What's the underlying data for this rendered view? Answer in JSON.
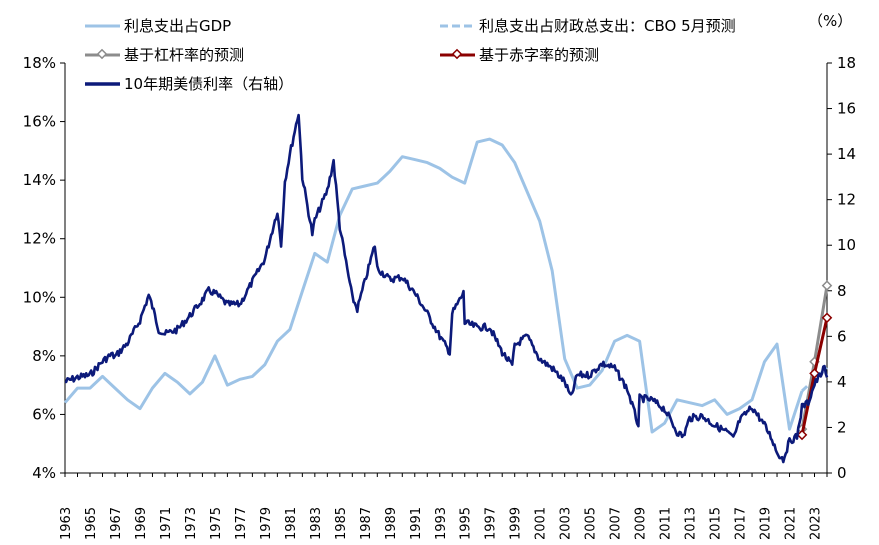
{
  "chart_data": {
    "type": "line",
    "unit_label": "（%）",
    "legend": [
      {
        "name": "利息支出占GDP",
        "color": "#9dc3e6",
        "style": "solid"
      },
      {
        "name": "利息支出占财政总支出：CBO 5月预测",
        "color": "#9dc3e6",
        "style": "dashed"
      },
      {
        "name": "基于杠杆率的预测",
        "color": "#8c8c8c",
        "style": "marker"
      },
      {
        "name": "基于赤字率的预测",
        "color": "#8b0000",
        "style": "marker"
      },
      {
        "name": "10年期美债利率（右轴）",
        "color": "#0c1a7a",
        "style": "solid-thick"
      }
    ],
    "left_axis": {
      "min": 4,
      "max": 18,
      "ticks": [
        "4%",
        "6%",
        "8%",
        "10%",
        "12%",
        "14%",
        "16%",
        "18%"
      ]
    },
    "right_axis": {
      "min": 0,
      "max": 18,
      "ticks": [
        "0",
        "2",
        "4",
        "6",
        "8",
        "10",
        "12",
        "14",
        "16",
        "18"
      ]
    },
    "x_axis": {
      "min": 1963,
      "max": 2024,
      "ticks": [
        "1963",
        "1965",
        "1967",
        "1969",
        "1971",
        "1973",
        "1975",
        "1977",
        "1979",
        "1981",
        "1983",
        "1985",
        "1987",
        "1989",
        "1991",
        "1993",
        "1995",
        "1997",
        "1999",
        "2001",
        "2003",
        "2005",
        "2007",
        "2009",
        "2011",
        "2013",
        "2015",
        "2017",
        "2019",
        "2021",
        "2023"
      ]
    },
    "series": [
      {
        "name": "利息支出占GDP",
        "axis": "left",
        "x": [
          1963,
          1964,
          1965,
          1966,
          1967,
          1968,
          1969,
          1970,
          1971,
          1972,
          1973,
          1974,
          1975,
          1976,
          1977,
          1978,
          1979,
          1980,
          1981,
          1982,
          1983,
          1984,
          1985,
          1986,
          1987,
          1988,
          1989,
          1990,
          1991,
          1992,
          1993,
          1994,
          1995,
          1996,
          1997,
          1998,
          1999,
          2000,
          2001,
          2002,
          2003,
          2004,
          2005,
          2006,
          2007,
          2008,
          2009,
          2010,
          2011,
          2012,
          2013,
          2014,
          2015,
          2016,
          2017,
          2018,
          2019,
          2020,
          2021,
          2022
        ],
        "values": [
          6.4,
          6.9,
          6.9,
          7.3,
          6.9,
          6.5,
          6.2,
          6.9,
          7.4,
          7.1,
          6.7,
          7.1,
          8.0,
          7.0,
          7.2,
          7.3,
          7.7,
          8.5,
          8.9,
          10.2,
          11.5,
          11.2,
          12.8,
          13.7,
          13.8,
          13.9,
          14.3,
          14.8,
          14.7,
          14.6,
          14.4,
          14.1,
          13.9,
          15.3,
          15.4,
          15.2,
          14.6,
          13.6,
          12.6,
          10.9,
          7.9,
          6.9,
          7.0,
          7.5,
          8.5,
          8.7,
          8.5,
          5.4,
          5.7,
          6.5,
          6.4,
          6.3,
          6.5,
          6.0,
          6.2,
          6.5,
          7.8,
          8.4,
          5.5,
          6.8
        ]
      },
      {
        "name": "利息支出占财政总支出：CBO 5月预测",
        "axis": "left",
        "x": [
          2022,
          2023,
          2024
        ],
        "values": [
          6.8,
          7.2,
          7.6
        ]
      },
      {
        "name": "基于杠杆率的预测",
        "axis": "left",
        "x": [
          2022,
          2023,
          2024
        ],
        "values": [
          5.5,
          7.8,
          10.4
        ]
      },
      {
        "name": "基于赤字率的预测",
        "axis": "left",
        "x": [
          2022,
          2023,
          2024
        ],
        "values": [
          5.3,
          7.4,
          9.3
        ]
      },
      {
        "name": "10年期美债利率（右轴）",
        "axis": "right",
        "x": [
          1963,
          1964,
          1965,
          1966,
          1966.7,
          1967,
          1968,
          1969,
          1969.7,
          1970,
          1970.5,
          1971,
          1972,
          1973,
          1974,
          1974.5,
          1975,
          1976,
          1977,
          1978,
          1979,
          1980,
          1980.3,
          1980.6,
          1981,
          1981.7,
          1982,
          1982.8,
          1983,
          1984,
          1984.5,
          1985,
          1986,
          1986.4,
          1987,
          1987.8,
          1988,
          1989,
          1990,
          1991,
          1992,
          1993,
          1993.8,
          1994,
          1994.9,
          1995,
          1996,
          1997,
          1998,
          1998.8,
          1999,
          2000,
          2001,
          2002,
          2003,
          2003.5,
          2004,
          2005,
          2006,
          2007,
          2008,
          2008.9,
          2009,
          2010,
          2011,
          2012,
          2012.5,
          2013,
          2014,
          2015,
          2016,
          2016.5,
          2017,
          2018,
          2019,
          2019.6,
          2020,
          2020.5,
          2021,
          2021.6,
          2022,
          2022.5,
          2023,
          2023.8,
          2024
        ],
        "values": [
          4.0,
          4.2,
          4.3,
          4.9,
          5.2,
          5.1,
          5.7,
          6.7,
          7.8,
          7.3,
          6.3,
          6.1,
          6.3,
          6.9,
          7.6,
          8.0,
          7.9,
          7.4,
          7.4,
          8.4,
          9.4,
          11.5,
          10.0,
          12.8,
          14.0,
          15.8,
          13.0,
          10.5,
          11.1,
          12.4,
          13.7,
          10.8,
          7.7,
          7.2,
          8.4,
          10.0,
          9.0,
          8.5,
          8.6,
          7.9,
          7.0,
          6.0,
          5.3,
          7.0,
          7.9,
          6.6,
          6.4,
          6.4,
          5.3,
          4.7,
          5.6,
          6.0,
          5.0,
          4.6,
          4.0,
          3.3,
          4.3,
          4.3,
          4.8,
          4.6,
          3.7,
          2.1,
          3.3,
          3.2,
          2.8,
          1.8,
          1.6,
          2.4,
          2.5,
          2.1,
          1.8,
          1.5,
          2.3,
          2.9,
          2.1,
          1.5,
          0.9,
          0.6,
          1.4,
          1.6,
          2.9,
          3.1,
          3.9,
          4.6,
          4.2
        ]
      }
    ]
  }
}
